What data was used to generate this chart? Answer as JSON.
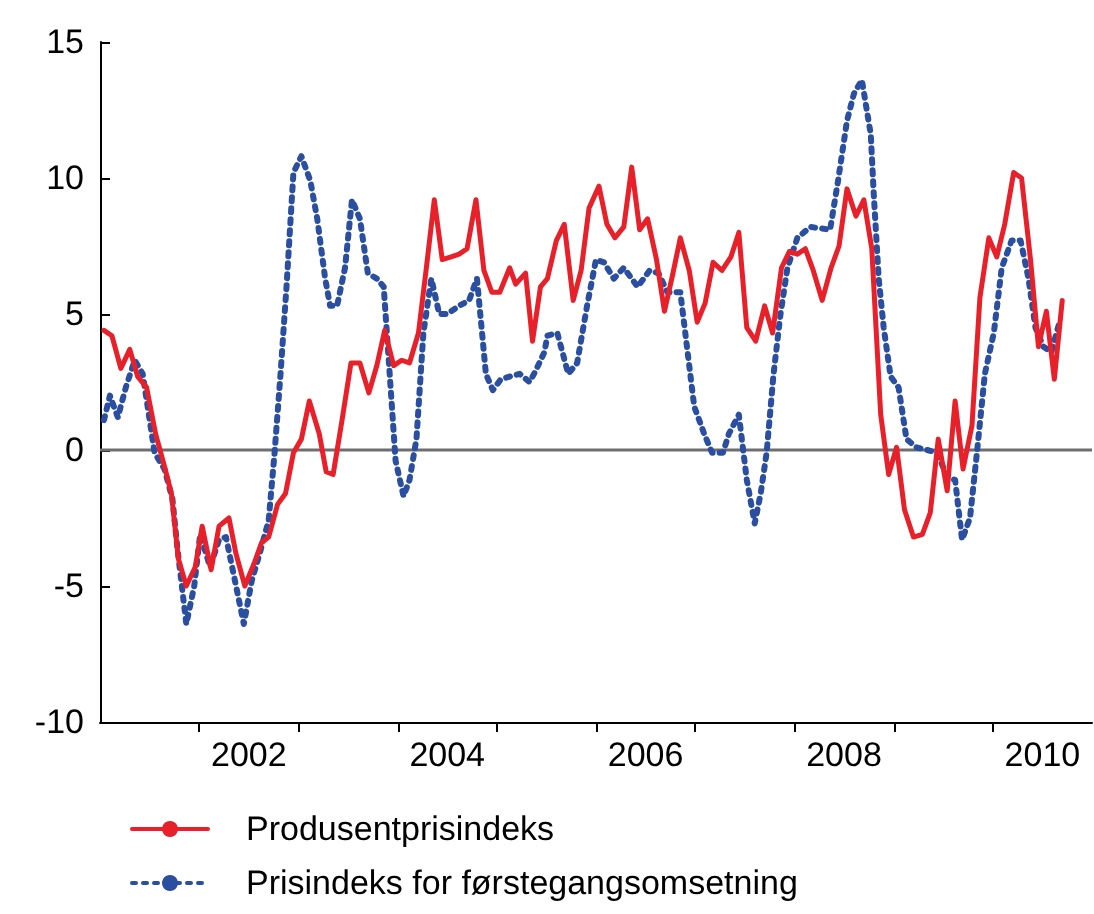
{
  "chart_data": {
    "type": "line",
    "xlim": [
      2000.5,
      2010.5
    ],
    "xticks": [
      {
        "value": 2001.5,
        "label": null
      },
      2002,
      {
        "value": 2002.5,
        "label": null
      },
      {
        "value": 2003.5,
        "label": null
      },
      2004,
      {
        "value": 2004.5,
        "label": null
      },
      {
        "value": 2005.5,
        "label": null
      },
      2006,
      {
        "value": 2006.5,
        "label": null
      },
      {
        "value": 2007.5,
        "label": null
      },
      2008,
      {
        "value": 2008.5,
        "label": null
      },
      {
        "value": 2009.5,
        "label": null
      },
      2010
    ],
    "ylim": [
      -10,
      15
    ],
    "yticks": [
      -10,
      -5,
      0,
      5,
      10,
      15
    ],
    "grid": false,
    "legend": "bottom left",
    "ref_lines": [
      {
        "axis": "y",
        "value": 0,
        "label": null,
        "color": "#6e6e6e"
      }
    ],
    "series": [
      {
        "name": "Produsentprisindeks",
        "color": "#e8202a",
        "line_style": "solid",
        "x": [
          2000.54,
          2000.62,
          2000.71,
          2000.8,
          2000.88,
          2000.97,
          2001.06,
          2001.15,
          2001.22,
          2001.29,
          2001.37,
          2001.46,
          2001.53,
          2001.62,
          2001.7,
          2001.8,
          2001.87,
          2001.96,
          2002.05,
          2002.13,
          2002.2,
          2002.29,
          2002.37,
          2002.45,
          2002.53,
          2002.61,
          2002.71,
          2002.78,
          2002.85,
          2002.94,
          2003.03,
          2003.12,
          2003.21,
          2003.29,
          2003.37,
          2003.46,
          2003.54,
          2003.62,
          2003.71,
          2003.79,
          2003.87,
          2003.95,
          2004.04,
          2004.12,
          2004.2,
          2004.29,
          2004.37,
          2004.45,
          2004.53,
          2004.63,
          2004.69,
          2004.79,
          2004.86,
          2004.94,
          2005.01,
          2005.1,
          2005.18,
          2005.27,
          2005.35,
          2005.43,
          2005.53,
          2005.61,
          2005.69,
          2005.78,
          2005.86,
          2005.94,
          2006.02,
          2006.11,
          2006.19,
          2006.27,
          2006.35,
          2006.44,
          2006.52,
          2006.6,
          2006.68,
          2006.77,
          2006.86,
          2006.94,
          2007.02,
          2007.11,
          2007.2,
          2007.28,
          2007.37,
          2007.45,
          2007.53,
          2007.61,
          2007.69,
          2007.78,
          2007.87,
          2007.95,
          2008.03,
          2008.12,
          2008.2,
          2008.28,
          2008.37,
          2008.45,
          2008.53,
          2008.61,
          2008.7,
          2008.79,
          2008.87,
          2008.95,
          2009.04,
          2009.12,
          2009.2,
          2009.29,
          2009.37,
          2009.46,
          2009.54,
          2009.62,
          2009.71,
          2009.79,
          2009.88,
          2009.96,
          2010.04,
          2010.12,
          2010.2
        ],
        "values": [
          4.4,
          4.2,
          3.0,
          3.7,
          2.7,
          2.3,
          0.6,
          -0.6,
          -1.6,
          -4.0,
          -5.0,
          -4.3,
          -2.8,
          -4.4,
          -2.8,
          -2.5,
          -3.8,
          -5.0,
          -4.2,
          -3.4,
          -3.2,
          -2.0,
          -1.6,
          -0.1,
          0.4,
          1.8,
          0.6,
          -0.8,
          -0.9,
          1.1,
          3.2,
          3.2,
          2.1,
          3.1,
          4.4,
          3.1,
          3.3,
          3.2,
          4.3,
          6.7,
          9.2,
          7.0,
          7.1,
          7.2,
          7.4,
          9.2,
          6.6,
          5.8,
          5.8,
          6.7,
          6.1,
          6.5,
          4.0,
          6.0,
          6.3,
          7.7,
          8.3,
          5.5,
          6.6,
          8.9,
          9.7,
          8.3,
          7.8,
          8.2,
          10.4,
          8.1,
          8.5,
          7.0,
          5.1,
          6.4,
          7.8,
          6.6,
          4.7,
          5.4,
          6.9,
          6.6,
          7.1,
          8.0,
          4.5,
          4.0,
          5.3,
          4.3,
          6.7,
          7.3,
          7.2,
          7.4,
          6.6,
          5.5,
          6.7,
          7.5,
          9.6,
          8.6,
          9.2,
          7.4,
          1.3,
          -0.9,
          0.1,
          -2.2,
          -3.2,
          -3.1,
          -2.3,
          0.4,
          -1.5,
          1.8,
          -0.7,
          0.9,
          5.6,
          7.8,
          7.1,
          8.3,
          10.2,
          10.0,
          7.0,
          3.8,
          5.1,
          2.6,
          5.5
        ]
      },
      {
        "name": "Prisindeks for førstegangsomsetning",
        "color": "#2a4ea0",
        "line_style": "dotted",
        "x": [
          2000.54,
          2000.6,
          2000.68,
          2000.76,
          2000.85,
          2000.93,
          2000.98,
          2001.05,
          2001.15,
          2001.23,
          2001.28,
          2001.37,
          2001.45,
          2001.51,
          2001.61,
          2001.7,
          2001.77,
          2001.86,
          2001.95,
          2002.03,
          2002.11,
          2002.2,
          2002.26,
          2002.32,
          2002.38,
          2002.45,
          2002.53,
          2002.62,
          2002.69,
          2002.77,
          2002.82,
          2002.89,
          2002.97,
          2003.04,
          2003.12,
          2003.2,
          2003.29,
          2003.36,
          2003.42,
          2003.48,
          2003.56,
          2003.62,
          2003.69,
          2003.76,
          2003.84,
          2003.92,
          2004.0,
          2004.12,
          2004.22,
          2004.3,
          2004.39,
          2004.46,
          2004.54,
          2004.63,
          2004.73,
          2004.83,
          2004.89,
          2004.98,
          2005.01,
          2005.11,
          2005.22,
          2005.31,
          2005.41,
          2005.5,
          2005.58,
          2005.68,
          2005.78,
          2005.92,
          2006.04,
          2006.13,
          2006.22,
          2006.35,
          2006.42,
          2006.49,
          2006.59,
          2006.67,
          2006.78,
          2006.84,
          2006.94,
          2007.02,
          2007.1,
          2007.16,
          2007.22,
          2007.29,
          2007.36,
          2007.43,
          2007.53,
          2007.66,
          2007.86,
          2007.94,
          2008.03,
          2008.1,
          2008.18,
          2008.27,
          2008.3,
          2008.35,
          2008.4,
          2008.47,
          2008.55,
          2008.63,
          2008.73,
          2008.84,
          2008.94,
          2009.04,
          2009.12,
          2009.19,
          2009.27,
          2009.34,
          2009.42,
          2009.51,
          2009.59,
          2009.69,
          2009.78,
          2009.86,
          2009.93,
          2010.01,
          2010.09,
          2010.18
        ],
        "values": [
          1.1,
          2.0,
          1.2,
          2.3,
          3.3,
          2.8,
          1.6,
          -0.1,
          -0.7,
          -1.8,
          -3.6,
          -6.4,
          -5.0,
          -3.1,
          -4.3,
          -3.3,
          -3.2,
          -4.8,
          -6.4,
          -4.8,
          -3.8,
          -2.6,
          -0.1,
          2.8,
          6.0,
          10.2,
          10.8,
          9.9,
          8.5,
          6.3,
          5.3,
          5.3,
          6.7,
          9.2,
          8.5,
          6.5,
          6.3,
          6.0,
          2.8,
          -0.4,
          -1.7,
          -1.1,
          0.4,
          4.3,
          6.3,
          5.0,
          5.0,
          5.3,
          5.5,
          6.3,
          2.8,
          2.2,
          2.6,
          2.7,
          2.8,
          2.5,
          2.9,
          3.6,
          4.2,
          4.3,
          2.8,
          3.2,
          5.3,
          7.0,
          6.9,
          6.3,
          6.7,
          6.0,
          6.6,
          6.5,
          5.8,
          5.8,
          3.7,
          1.6,
          0.6,
          -0.1,
          -0.1,
          0.6,
          1.3,
          -1.1,
          -2.7,
          -1.6,
          -0.1,
          2.8,
          5.0,
          6.7,
          7.8,
          8.2,
          8.1,
          9.9,
          12.1,
          13.1,
          13.6,
          11.6,
          9.4,
          6.3,
          4.5,
          2.7,
          2.3,
          0.4,
          0.1,
          0.0,
          -0.1,
          -1.0,
          -1.1,
          -3.3,
          -2.5,
          -0.1,
          2.8,
          4.3,
          6.7,
          7.7,
          7.7,
          6.3,
          4.5,
          3.8,
          3.6,
          4.8
        ]
      }
    ]
  }
}
